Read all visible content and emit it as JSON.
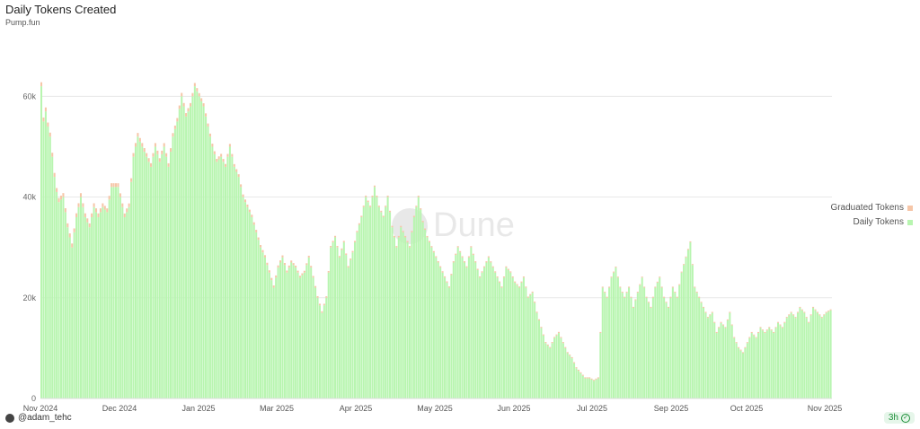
{
  "header": {
    "title": "Daily Tokens Created",
    "subtitle": "Pump.fun"
  },
  "legend": [
    {
      "label": "Graduated Tokens",
      "color": "#f6c6a8"
    },
    {
      "label": "Daily Tokens",
      "color": "#b8f5b0"
    }
  ],
  "footer": {
    "author": "@adam_tehc",
    "freshness": "3h"
  },
  "watermark": "Dune",
  "chart_data": {
    "type": "bar",
    "title": "Daily Tokens Created",
    "subtitle": "Pump.fun",
    "xlabel": "",
    "ylabel": "",
    "ylim": [
      0,
      72000
    ],
    "yticks": [
      0,
      20000,
      40000,
      60000
    ],
    "ytick_labels": [
      "0",
      "20k",
      "40k",
      "60k"
    ],
    "xticks": [
      "Nov 2024",
      "Dec 2024",
      "Jan 2025",
      "Mar 2025",
      "Apr 2025",
      "May 2025",
      "Jun 2025",
      "Jul 2025",
      "Sep 2025",
      "Oct 2025",
      "Nov 2025"
    ],
    "grid": true,
    "legend_position": "right",
    "stacked": true,
    "series": [
      {
        "name": "Daily Tokens",
        "color": "#b8f5b0",
        "anchors": [
          [
            0,
            62000
          ],
          [
            1,
            55000
          ],
          [
            2,
            57000
          ],
          [
            3,
            54000
          ],
          [
            4,
            52000
          ],
          [
            5,
            48000
          ],
          [
            6,
            44000
          ],
          [
            7,
            41000
          ],
          [
            8,
            39000
          ],
          [
            10,
            40000
          ],
          [
            12,
            34000
          ],
          [
            14,
            30000
          ],
          [
            16,
            36000
          ],
          [
            18,
            40000
          ],
          [
            20,
            36000
          ],
          [
            22,
            34000
          ],
          [
            24,
            38000
          ],
          [
            26,
            36000
          ],
          [
            28,
            38000
          ],
          [
            30,
            37000
          ],
          [
            32,
            42000
          ],
          [
            35,
            42000
          ],
          [
            38,
            36000
          ],
          [
            40,
            38000
          ],
          [
            42,
            48000
          ],
          [
            44,
            52000
          ],
          [
            46,
            50000
          ],
          [
            48,
            48000
          ],
          [
            50,
            46000
          ],
          [
            52,
            50000
          ],
          [
            54,
            47000
          ],
          [
            56,
            50000
          ],
          [
            58,
            46000
          ],
          [
            60,
            52000
          ],
          [
            62,
            55000
          ],
          [
            64,
            60000
          ],
          [
            66,
            56000
          ],
          [
            68,
            58000
          ],
          [
            70,
            62000
          ],
          [
            72,
            60000
          ],
          [
            74,
            58000
          ],
          [
            76,
            54000
          ],
          [
            78,
            50000
          ],
          [
            80,
            47000
          ],
          [
            82,
            48000
          ],
          [
            84,
            46000
          ],
          [
            86,
            50000
          ],
          [
            88,
            46000
          ],
          [
            90,
            44000
          ],
          [
            92,
            40000
          ],
          [
            94,
            38000
          ],
          [
            96,
            36000
          ],
          [
            98,
            33000
          ],
          [
            100,
            30000
          ],
          [
            102,
            28000
          ],
          [
            104,
            25000
          ],
          [
            106,
            22000
          ],
          [
            108,
            26000
          ],
          [
            110,
            28000
          ],
          [
            112,
            25000
          ],
          [
            114,
            27000
          ],
          [
            116,
            26000
          ],
          [
            118,
            24000
          ],
          [
            120,
            25000
          ],
          [
            122,
            28000
          ],
          [
            124,
            24000
          ],
          [
            126,
            20000
          ],
          [
            128,
            17000
          ],
          [
            130,
            20000
          ],
          [
            132,
            30000
          ],
          [
            134,
            32000
          ],
          [
            136,
            28000
          ],
          [
            138,
            31000
          ],
          [
            140,
            26000
          ],
          [
            142,
            29000
          ],
          [
            144,
            33000
          ],
          [
            146,
            36000
          ],
          [
            148,
            40000
          ],
          [
            150,
            38000
          ],
          [
            152,
            42000
          ],
          [
            154,
            38000
          ],
          [
            156,
            36000
          ],
          [
            158,
            40000
          ],
          [
            160,
            34000
          ],
          [
            162,
            30000
          ],
          [
            164,
            34000
          ],
          [
            166,
            32000
          ],
          [
            168,
            30000
          ],
          [
            170,
            36000
          ],
          [
            172,
            40000
          ],
          [
            174,
            35000
          ],
          [
            176,
            32000
          ],
          [
            178,
            30000
          ],
          [
            180,
            28000
          ],
          [
            182,
            26000
          ],
          [
            184,
            24000
          ],
          [
            186,
            22000
          ],
          [
            188,
            27000
          ],
          [
            190,
            30000
          ],
          [
            192,
            28000
          ],
          [
            194,
            26000
          ],
          [
            196,
            30000
          ],
          [
            198,
            27000
          ],
          [
            200,
            24000
          ],
          [
            202,
            26000
          ],
          [
            204,
            28000
          ],
          [
            206,
            26000
          ],
          [
            208,
            24000
          ],
          [
            210,
            22000
          ],
          [
            212,
            26000
          ],
          [
            214,
            25000
          ],
          [
            216,
            23000
          ],
          [
            218,
            22000
          ],
          [
            220,
            24000
          ],
          [
            222,
            20000
          ],
          [
            224,
            21000
          ],
          [
            226,
            17000
          ],
          [
            228,
            14000
          ],
          [
            230,
            11000
          ],
          [
            232,
            10000
          ],
          [
            234,
            12000
          ],
          [
            236,
            13000
          ],
          [
            238,
            11000
          ],
          [
            240,
            9000
          ],
          [
            242,
            8000
          ],
          [
            244,
            6000
          ],
          [
            246,
            5000
          ],
          [
            248,
            4000
          ],
          [
            250,
            4000
          ],
          [
            252,
            3500
          ],
          [
            254,
            4000
          ],
          [
            256,
            22000
          ],
          [
            258,
            20000
          ],
          [
            260,
            24000
          ],
          [
            262,
            26000
          ],
          [
            264,
            22000
          ],
          [
            266,
            20000
          ],
          [
            268,
            22000
          ],
          [
            270,
            18000
          ],
          [
            272,
            21000
          ],
          [
            274,
            24000
          ],
          [
            276,
            20000
          ],
          [
            278,
            18000
          ],
          [
            280,
            22000
          ],
          [
            282,
            24000
          ],
          [
            284,
            20000
          ],
          [
            286,
            18000
          ],
          [
            288,
            22000
          ],
          [
            290,
            20000
          ],
          [
            292,
            25000
          ],
          [
            294,
            28000
          ],
          [
            296,
            31000
          ],
          [
            298,
            22000
          ],
          [
            300,
            20000
          ],
          [
            302,
            18000
          ],
          [
            304,
            16000
          ],
          [
            306,
            17000
          ],
          [
            308,
            13000
          ],
          [
            310,
            15000
          ],
          [
            312,
            14000
          ],
          [
            314,
            17000
          ],
          [
            316,
            12000
          ],
          [
            318,
            10000
          ],
          [
            320,
            9000
          ],
          [
            322,
            11000
          ],
          [
            324,
            13000
          ],
          [
            326,
            12000
          ],
          [
            328,
            14000
          ],
          [
            330,
            13000
          ],
          [
            332,
            14000
          ],
          [
            334,
            13000
          ],
          [
            336,
            15000
          ],
          [
            338,
            14000
          ],
          [
            340,
            16000
          ],
          [
            342,
            17000
          ],
          [
            344,
            16000
          ],
          [
            346,
            18000
          ],
          [
            348,
            17000
          ],
          [
            350,
            15000
          ],
          [
            352,
            18000
          ],
          [
            354,
            17000
          ],
          [
            356,
            16000
          ],
          [
            358,
            17000
          ],
          [
            360,
            17500
          ]
        ]
      },
      {
        "name": "Graduated Tokens",
        "color": "#f6c6a8",
        "anchors": [
          [
            0,
            800
          ],
          [
            60,
            700
          ],
          [
            130,
            300
          ],
          [
            200,
            250
          ],
          [
            260,
            200
          ],
          [
            360,
            200
          ]
        ]
      }
    ],
    "n_days": 361
  }
}
